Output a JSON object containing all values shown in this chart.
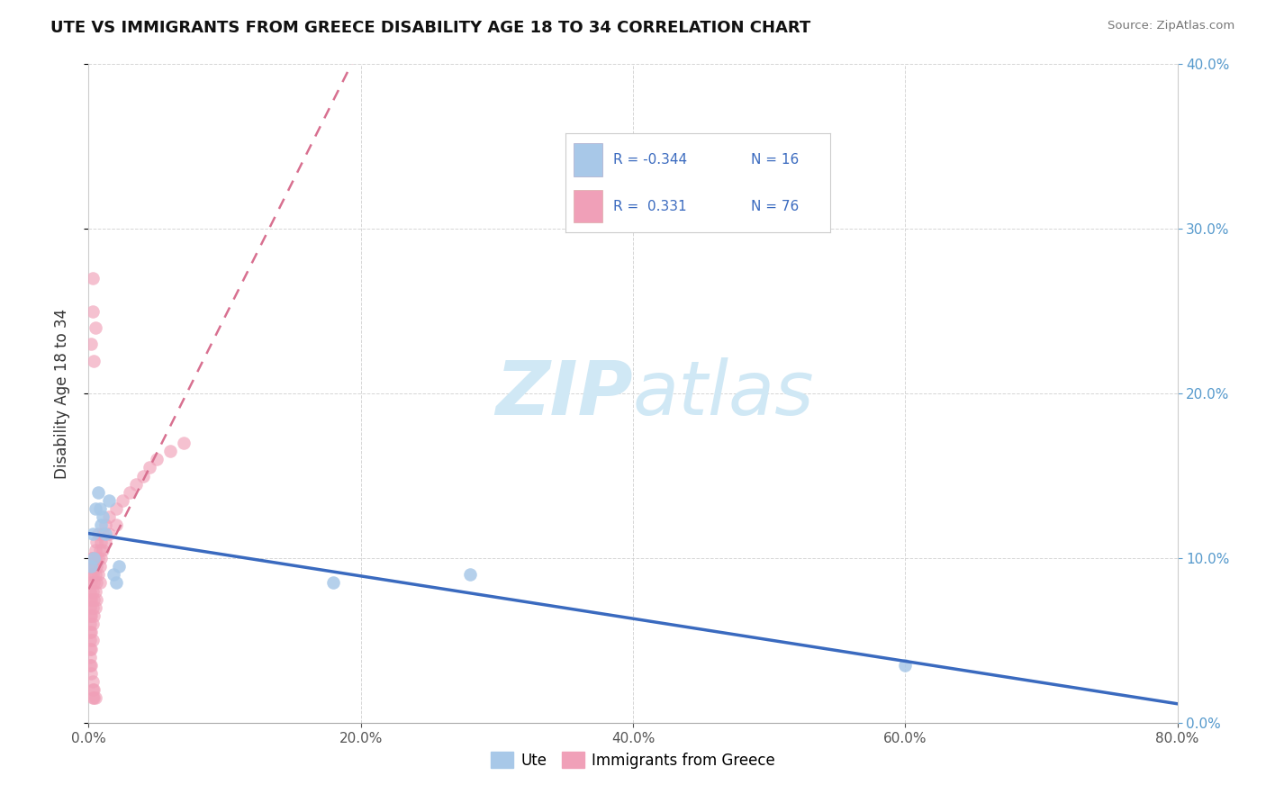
{
  "title": "UTE VS IMMIGRANTS FROM GREECE DISABILITY AGE 18 TO 34 CORRELATION CHART",
  "source": "Source: ZipAtlas.com",
  "ylabel": "Disability Age 18 to 34",
  "xlim": [
    0,
    0.8
  ],
  "ylim": [
    0,
    0.4
  ],
  "xticks": [
    0.0,
    0.2,
    0.4,
    0.6,
    0.8
  ],
  "yticks": [
    0.0,
    0.1,
    0.2,
    0.3,
    0.4
  ],
  "ute_color": "#a8c8e8",
  "greece_color": "#f0a0b8",
  "ute_line_color": "#3a6abf",
  "greece_line_color": "#d87090",
  "watermark_zip": "ZIP",
  "watermark_atlas": "atlas",
  "watermark_color": "#d0e8f5",
  "legend_r1": "R = -0.344",
  "legend_n1": "N = 16",
  "legend_r2": "R =  0.331",
  "legend_n2": "N = 76",
  "ute_x": [
    0.002,
    0.003,
    0.004,
    0.005,
    0.007,
    0.008,
    0.009,
    0.01,
    0.012,
    0.015,
    0.018,
    0.02,
    0.022,
    0.18,
    0.28,
    0.6
  ],
  "ute_y": [
    0.095,
    0.115,
    0.1,
    0.13,
    0.14,
    0.13,
    0.12,
    0.125,
    0.115,
    0.135,
    0.09,
    0.085,
    0.095,
    0.085,
    0.09,
    0.035
  ],
  "greece_x": [
    0.001,
    0.001,
    0.001,
    0.001,
    0.001,
    0.001,
    0.001,
    0.001,
    0.001,
    0.001,
    0.002,
    0.002,
    0.002,
    0.002,
    0.002,
    0.002,
    0.002,
    0.002,
    0.002,
    0.002,
    0.003,
    0.003,
    0.003,
    0.003,
    0.003,
    0.003,
    0.003,
    0.003,
    0.003,
    0.003,
    0.004,
    0.004,
    0.004,
    0.004,
    0.004,
    0.004,
    0.004,
    0.005,
    0.005,
    0.005,
    0.005,
    0.005,
    0.005,
    0.006,
    0.006,
    0.006,
    0.006,
    0.007,
    0.007,
    0.007,
    0.008,
    0.008,
    0.008,
    0.009,
    0.009,
    0.01,
    0.01,
    0.012,
    0.012,
    0.015,
    0.015,
    0.02,
    0.02,
    0.025,
    0.03,
    0.035,
    0.04,
    0.045,
    0.05,
    0.06,
    0.07,
    0.003,
    0.003,
    0.002,
    0.004,
    0.005
  ],
  "greece_y": [
    0.07,
    0.06,
    0.055,
    0.065,
    0.075,
    0.08,
    0.05,
    0.045,
    0.04,
    0.035,
    0.075,
    0.065,
    0.055,
    0.045,
    0.085,
    0.09,
    0.095,
    0.1,
    0.035,
    0.03,
    0.08,
    0.07,
    0.06,
    0.05,
    0.09,
    0.095,
    0.1,
    0.025,
    0.02,
    0.015,
    0.085,
    0.075,
    0.065,
    0.095,
    0.1,
    0.02,
    0.015,
    0.09,
    0.08,
    0.07,
    0.1,
    0.105,
    0.015,
    0.095,
    0.085,
    0.075,
    0.11,
    0.1,
    0.09,
    0.115,
    0.105,
    0.095,
    0.085,
    0.11,
    0.1,
    0.115,
    0.105,
    0.12,
    0.11,
    0.125,
    0.115,
    0.13,
    0.12,
    0.135,
    0.14,
    0.145,
    0.15,
    0.155,
    0.16,
    0.165,
    0.17,
    0.27,
    0.25,
    0.23,
    0.22,
    0.24
  ]
}
